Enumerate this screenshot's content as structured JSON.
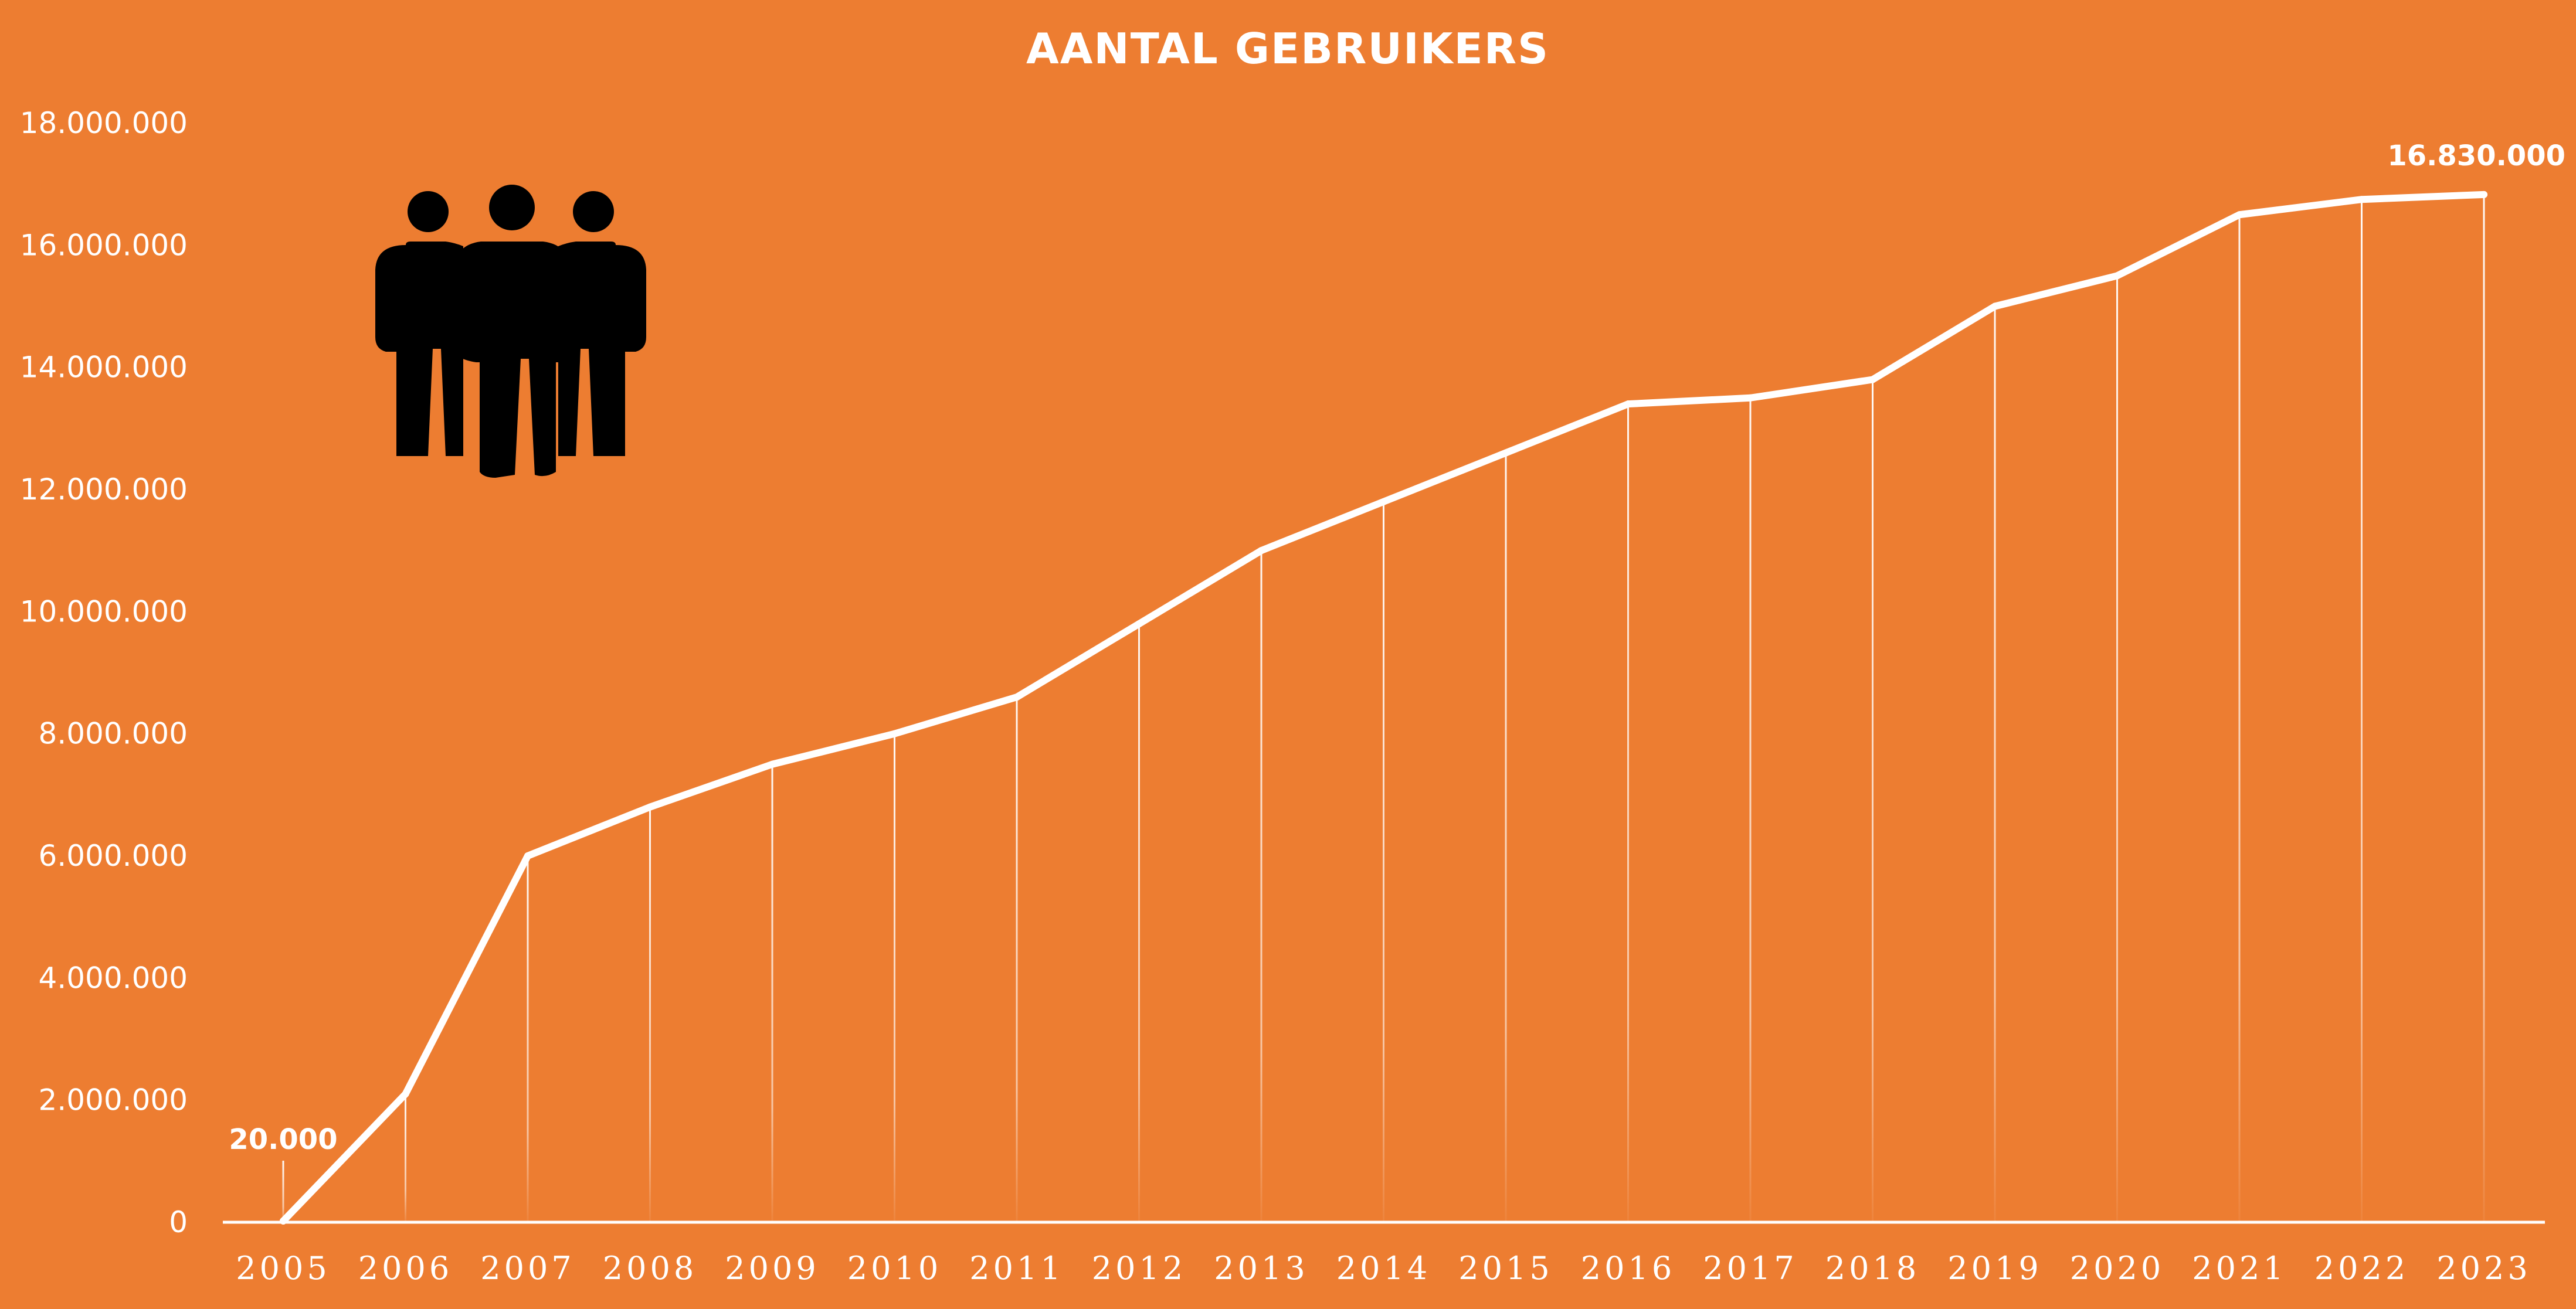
{
  "colors": {
    "background": "#ED7D31",
    "line": "#FFFFFF",
    "text": "#FFFFFF",
    "icon": "#000000"
  },
  "icon": "people-group-icon",
  "chart_data": {
    "type": "line",
    "title": "AANTAL GEBRUIKERS",
    "xlabel": "",
    "ylabel": "",
    "ylim": [
      0,
      18000000
    ],
    "grid": false,
    "x": [
      "2005",
      "2006",
      "2007",
      "2008",
      "2009",
      "2010",
      "2011",
      "2012",
      "2013",
      "2014",
      "2015",
      "2016",
      "2017",
      "2018",
      "2019",
      "2020",
      "2021",
      "2022",
      "2023"
    ],
    "series": [
      {
        "values": [
          20000,
          2100000,
          6000000,
          6800000,
          7500000,
          8000000,
          8600000,
          9800000,
          11000000,
          11800000,
          12600000,
          13400000,
          13500000,
          13800000,
          15000000,
          15500000,
          16500000,
          16750000,
          16830000
        ]
      }
    ],
    "y_ticks": [
      0,
      2000000,
      4000000,
      6000000,
      8000000,
      10000000,
      12000000,
      14000000,
      16000000,
      18000000
    ],
    "y_tick_labels": [
      "0",
      "2.000.000",
      "4.000.000",
      "6.000.000",
      "8.000.000",
      "10.000.000",
      "12.000.000",
      "14.000.000",
      "16.000.000",
      "18.000.000"
    ],
    "annotations": [
      {
        "x": "2005",
        "text": "20.000"
      },
      {
        "x": "2023",
        "text": "16.830.000"
      }
    ]
  }
}
